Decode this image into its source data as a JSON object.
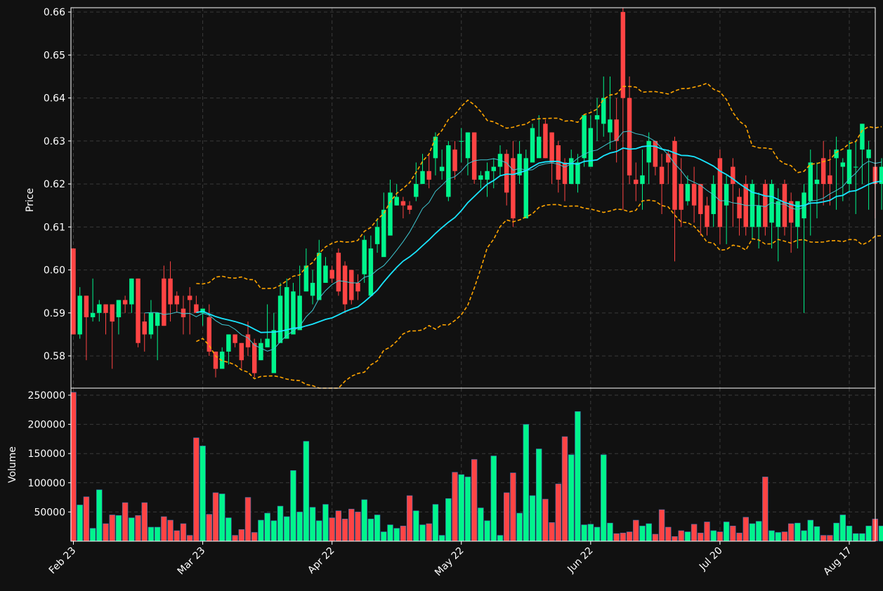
{
  "colors": {
    "background": "#111111",
    "up": "#00f58c",
    "down": "#ff4444",
    "axis": "#ffffff",
    "grid": "#3a3a3a",
    "ma_fast": "#3ec6d0",
    "ma_slow": "#19e6ff",
    "bands": "#ffa500"
  },
  "chart_data": {
    "type": "candlestick",
    "title": "",
    "price_panel": {
      "ylabel": "Price",
      "ylim": [
        0.5725,
        0.661
      ],
      "yticks": [
        0.58,
        0.59,
        0.6,
        0.61,
        0.62,
        0.63,
        0.64,
        0.65,
        0.66
      ],
      "ytick_labels": [
        "0.58",
        "0.59",
        "0.60",
        "0.61",
        "0.62",
        "0.63",
        "0.64",
        "0.65",
        "0.66"
      ],
      "grid": true
    },
    "volume_panel": {
      "ylabel": "Volume",
      "ylim": [
        0,
        262000
      ],
      "yticks": [
        50000,
        100000,
        150000,
        200000,
        250000
      ],
      "ytick_labels": [
        "50000",
        "100000",
        "150000",
        "200000",
        "250000"
      ],
      "grid": true
    },
    "x_axis": {
      "num_bars": 126,
      "tick_indices": [
        0,
        20,
        40,
        60,
        80,
        100,
        120
      ],
      "tick_labels": [
        "Feb 23",
        "Mar 23",
        "Apr 22",
        "May 22",
        "Jun 22",
        "Jul 20",
        "Aug 17"
      ]
    },
    "candles": {
      "open": [
        0.605,
        0.585,
        0.594,
        0.589,
        0.59,
        0.592,
        0.592,
        0.589,
        0.593,
        0.592,
        0.598,
        0.588,
        0.585,
        0.587,
        0.598,
        0.598,
        0.594,
        0.591,
        0.594,
        0.592,
        0.59,
        0.589,
        0.581,
        0.577,
        0.581,
        0.585,
        0.583,
        0.585,
        0.583,
        0.579,
        0.582,
        0.576,
        0.583,
        0.584,
        0.585,
        0.586,
        0.595,
        0.594,
        0.593,
        0.597,
        0.6,
        0.604,
        0.601,
        0.6,
        0.597,
        0.599,
        0.594,
        0.606,
        0.603,
        0.608,
        0.615,
        0.616,
        0.615,
        0.617,
        0.62,
        0.623,
        0.626,
        0.623,
        0.617,
        0.628,
        0.63,
        0.626,
        0.632,
        0.621,
        0.621,
        0.623,
        0.624,
        0.627,
        0.626,
        0.622,
        0.612,
        0.625,
        0.626,
        0.634,
        0.632,
        0.629,
        0.625,
        0.62,
        0.62,
        0.626,
        0.624,
        0.635,
        0.634,
        0.632,
        0.635,
        0.66,
        0.64,
        0.621,
        0.62,
        0.625,
        0.63,
        0.624,
        0.627,
        0.63,
        0.62,
        0.616,
        0.62,
        0.62,
        0.615,
        0.613,
        0.626,
        0.615,
        0.624,
        0.617,
        0.62,
        0.61,
        0.61,
        0.62,
        0.611,
        0.61,
        0.62,
        0.616,
        0.61,
        0.612,
        0.616,
        0.62,
        0.626,
        0.622,
        0.626,
        0.624,
        0.62,
        0.624,
        0.628,
        0.626,
        0.624,
        0.62
      ],
      "close": [
        0.585,
        0.594,
        0.589,
        0.59,
        0.592,
        0.59,
        0.588,
        0.593,
        0.592,
        0.598,
        0.583,
        0.585,
        0.59,
        0.59,
        0.587,
        0.592,
        0.592,
        0.589,
        0.593,
        0.59,
        0.591,
        0.581,
        0.577,
        0.581,
        0.585,
        0.583,
        0.579,
        0.582,
        0.576,
        0.583,
        0.584,
        0.586,
        0.594,
        0.596,
        0.595,
        0.594,
        0.601,
        0.597,
        0.604,
        0.601,
        0.598,
        0.595,
        0.592,
        0.593,
        0.595,
        0.607,
        0.605,
        0.61,
        0.614,
        0.618,
        0.617,
        0.615,
        0.614,
        0.62,
        0.623,
        0.621,
        0.631,
        0.624,
        0.629,
        0.623,
        0.63,
        0.632,
        0.621,
        0.622,
        0.623,
        0.624,
        0.627,
        0.618,
        0.612,
        0.627,
        0.626,
        0.633,
        0.631,
        0.626,
        0.625,
        0.621,
        0.62,
        0.626,
        0.625,
        0.636,
        0.633,
        0.636,
        0.64,
        0.635,
        0.63,
        0.64,
        0.622,
        0.62,
        0.622,
        0.63,
        0.624,
        0.62,
        0.625,
        0.614,
        0.614,
        0.62,
        0.615,
        0.613,
        0.61,
        0.62,
        0.61,
        0.62,
        0.62,
        0.612,
        0.61,
        0.62,
        0.615,
        0.61,
        0.62,
        0.616,
        0.61,
        0.611,
        0.616,
        0.618,
        0.625,
        0.621,
        0.62,
        0.62,
        0.628,
        0.625,
        0.628,
        0.624,
        0.634,
        0.628,
        0.62,
        0.624
      ],
      "high": [
        0.605,
        0.596,
        0.594,
        0.598,
        0.593,
        0.592,
        0.592,
        0.593,
        0.594,
        0.598,
        0.598,
        0.59,
        0.593,
        0.59,
        0.601,
        0.602,
        0.595,
        0.594,
        0.596,
        0.594,
        0.591,
        0.592,
        0.581,
        0.582,
        0.585,
        0.585,
        0.583,
        0.588,
        0.584,
        0.584,
        0.592,
        0.59,
        0.597,
        0.598,
        0.597,
        0.601,
        0.605,
        0.6,
        0.607,
        0.603,
        0.601,
        0.605,
        0.602,
        0.6,
        0.599,
        0.608,
        0.608,
        0.612,
        0.618,
        0.621,
        0.62,
        0.617,
        0.616,
        0.625,
        0.627,
        0.627,
        0.632,
        0.628,
        0.63,
        0.63,
        0.633,
        0.632,
        0.632,
        0.623,
        0.625,
        0.626,
        0.629,
        0.628,
        0.63,
        0.63,
        0.628,
        0.634,
        0.636,
        0.635,
        0.632,
        0.63,
        0.626,
        0.628,
        0.627,
        0.636,
        0.636,
        0.64,
        0.645,
        0.645,
        0.64,
        0.661,
        0.645,
        0.625,
        0.628,
        0.632,
        0.63,
        0.627,
        0.628,
        0.631,
        0.626,
        0.622,
        0.624,
        0.62,
        0.617,
        0.622,
        0.628,
        0.622,
        0.626,
        0.619,
        0.622,
        0.621,
        0.618,
        0.621,
        0.621,
        0.619,
        0.621,
        0.618,
        0.614,
        0.62,
        0.628,
        0.625,
        0.63,
        0.628,
        0.631,
        0.626,
        0.63,
        0.63,
        0.634,
        0.63,
        0.625,
        0.626
      ],
      "low": [
        0.585,
        0.584,
        0.579,
        0.588,
        0.588,
        0.585,
        0.577,
        0.585,
        0.59,
        0.59,
        0.582,
        0.581,
        0.584,
        0.579,
        0.587,
        0.588,
        0.59,
        0.585,
        0.585,
        0.59,
        0.587,
        0.58,
        0.575,
        0.577,
        0.578,
        0.582,
        0.577,
        0.58,
        0.575,
        0.579,
        0.582,
        0.583,
        0.589,
        0.591,
        0.592,
        0.593,
        0.595,
        0.592,
        0.596,
        0.597,
        0.597,
        0.594,
        0.59,
        0.592,
        0.593,
        0.597,
        0.603,
        0.604,
        0.606,
        0.612,
        0.615,
        0.612,
        0.613,
        0.616,
        0.62,
        0.619,
        0.622,
        0.621,
        0.616,
        0.621,
        0.625,
        0.622,
        0.62,
        0.619,
        0.617,
        0.619,
        0.622,
        0.615,
        0.61,
        0.62,
        0.62,
        0.626,
        0.627,
        0.626,
        0.62,
        0.618,
        0.616,
        0.62,
        0.618,
        0.624,
        0.63,
        0.63,
        0.631,
        0.628,
        0.625,
        0.614,
        0.62,
        0.616,
        0.614,
        0.62,
        0.622,
        0.613,
        0.62,
        0.602,
        0.61,
        0.615,
        0.611,
        0.608,
        0.608,
        0.61,
        0.606,
        0.606,
        0.61,
        0.608,
        0.608,
        0.607,
        0.605,
        0.608,
        0.605,
        0.602,
        0.608,
        0.604,
        0.605,
        0.59,
        0.608,
        0.612,
        0.615,
        0.615,
        0.614,
        0.616,
        0.618,
        0.613,
        0.62,
        0.614,
        0.612,
        0.614
      ]
    },
    "volume": [
      255000,
      62000,
      76000,
      22000,
      88000,
      30000,
      45000,
      44000,
      66000,
      40000,
      44000,
      66000,
      24000,
      24000,
      42000,
      36000,
      18000,
      30000,
      10000,
      177000,
      163000,
      46000,
      83000,
      81000,
      40000,
      10000,
      20000,
      75000,
      15000,
      36000,
      48000,
      35000,
      60000,
      42000,
      121000,
      50000,
      171000,
      58000,
      35000,
      63000,
      40000,
      52000,
      38000,
      55000,
      50000,
      71000,
      38000,
      45000,
      16000,
      28000,
      22000,
      26000,
      78000,
      52000,
      28000,
      30000,
      63000,
      10000,
      73000,
      118000,
      114000,
      110000,
      140000,
      57000,
      35000,
      146000,
      10000,
      83000,
      117000,
      48000,
      200000,
      78000,
      158000,
      72000,
      32000,
      98000,
      179000,
      148000,
      222000,
      28000,
      29000,
      24000,
      148000,
      31000,
      13000,
      14000,
      16000,
      36000,
      26000,
      30000,
      12000,
      54000,
      24000,
      8000,
      18000,
      16000,
      29000,
      14000,
      33000,
      18000,
      16000,
      33000,
      26000,
      14000,
      41000,
      30000,
      34000,
      110000,
      18000,
      15000,
      16000,
      30000,
      31000,
      18000,
      36000,
      25000,
      10000,
      10000,
      31000,
      45000,
      26000,
      13000,
      13000,
      26000,
      38000,
      26000
    ],
    "overlays": [
      {
        "type": "moving_average",
        "role": "fast",
        "color": "#3ec6d0"
      },
      {
        "type": "moving_average",
        "role": "slow",
        "color": "#19e6ff"
      },
      {
        "type": "bollinger_bands",
        "role": "bands",
        "color": "#ffa500",
        "style": "dashed"
      }
    ]
  }
}
